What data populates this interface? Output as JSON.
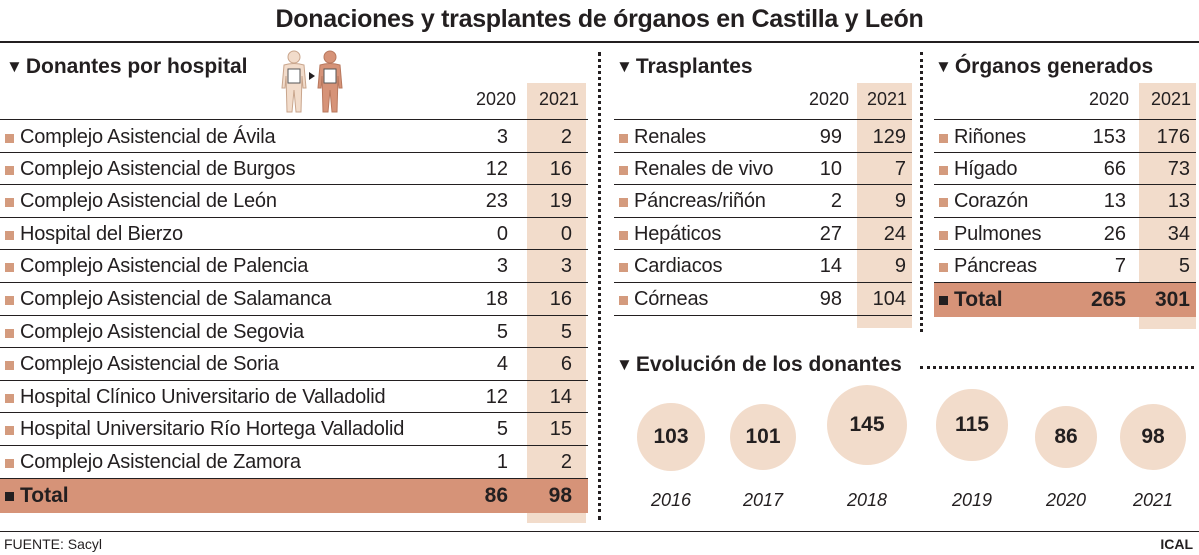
{
  "title": "Donaciones y trasplantes de órganos en Castilla y León",
  "colors": {
    "highlight": "#f2dccb",
    "total": "#d69378",
    "bullet": "#d49b7e",
    "text": "#231f20"
  },
  "donantes": {
    "heading": "Donantes por hospital",
    "years": [
      "2020",
      "2021"
    ],
    "rows": [
      {
        "label": "Complejo Asistencial de Ávila",
        "v2020": "3",
        "v2021": "2"
      },
      {
        "label": "Complejo Asistencial de Burgos",
        "v2020": "12",
        "v2021": "16"
      },
      {
        "label": "Complejo Asistencial de León",
        "v2020": "23",
        "v2021": "19"
      },
      {
        "label": "Hospital del Bierzo",
        "v2020": "0",
        "v2021": "0"
      },
      {
        "label": "Complejo Asistencial de Palencia",
        "v2020": "3",
        "v2021": "3"
      },
      {
        "label": "Complejo Asistencial de Salamanca",
        "v2020": "18",
        "v2021": "16"
      },
      {
        "label": "Complejo Asistencial de Segovia",
        "v2020": "5",
        "v2021": "5"
      },
      {
        "label": "Complejo Asistencial de Soria",
        "v2020": "4",
        "v2021": "6"
      },
      {
        "label": "Hospital Clínico Universitario de Valladolid",
        "v2020": "12",
        "v2021": "14"
      },
      {
        "label": "Hospital Universitario Río Hortega Valladolid",
        "v2020": "5",
        "v2021": "15"
      },
      {
        "label": "Complejo Asistencial de Zamora",
        "v2020": "1",
        "v2021": "2"
      }
    ],
    "total": {
      "label": "Total",
      "v2020": "86",
      "v2021": "98"
    }
  },
  "trasplantes": {
    "heading": "Trasplantes",
    "years": [
      "2020",
      "2021"
    ],
    "rows": [
      {
        "label": "Renales",
        "v2020": "99",
        "v2021": "129"
      },
      {
        "label": "Renales de vivo",
        "v2020": "10",
        "v2021": "7"
      },
      {
        "label": "Páncreas/riñón",
        "v2020": "2",
        "v2021": "9"
      },
      {
        "label": "Hepáticos",
        "v2020": "27",
        "v2021": "24"
      },
      {
        "label": "Cardiacos",
        "v2020": "14",
        "v2021": "9"
      },
      {
        "label": "Córneas",
        "v2020": "98",
        "v2021": "104"
      }
    ]
  },
  "organos": {
    "heading": "Órganos generados",
    "years": [
      "2020",
      "2021"
    ],
    "rows": [
      {
        "label": "Riñones",
        "v2020": "153",
        "v2021": "176"
      },
      {
        "label": "Hígado",
        "v2020": "66",
        "v2021": "73"
      },
      {
        "label": "Corazón",
        "v2020": "13",
        "v2021": "13"
      },
      {
        "label": "Pulmones",
        "v2020": "26",
        "v2021": "34"
      },
      {
        "label": "Páncreas",
        "v2020": "7",
        "v2021": "5"
      }
    ],
    "total": {
      "label": "Total",
      "v2020": "265",
      "v2021": "301"
    }
  },
  "chart_data": {
    "type": "bubble",
    "title": "Evolución de los donantes",
    "x": [
      "2016",
      "2017",
      "2018",
      "2019",
      "2020",
      "2021"
    ],
    "values": [
      103,
      101,
      145,
      115,
      86,
      98
    ]
  },
  "footer": {
    "source": "FUENTE: Sacyl",
    "brand": "ICAL"
  },
  "icons": {
    "body_figures": "body-figures-icon",
    "triangle": "triangle-down-icon"
  }
}
